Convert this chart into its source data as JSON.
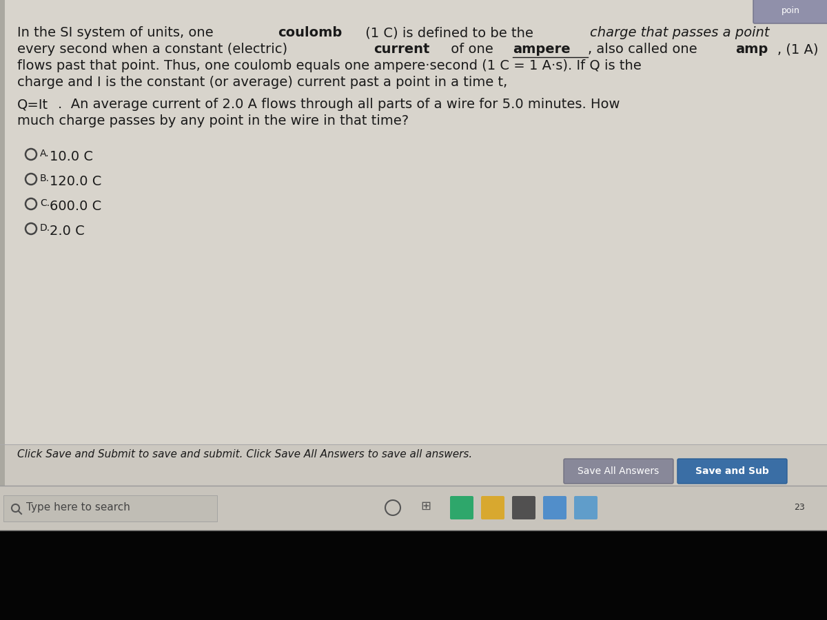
{
  "bg_outer": "#111111",
  "content_bg": "#d8d4cc",
  "taskbar_bg": "#c8c4bc",
  "taskbar_border": "#aaaaaa",
  "black_bottom": "#000000",
  "text_dark": "#1a1a1a",
  "text_medium": "#333333",
  "footer_bg": "#cccccc",
  "btn1_bg": "#888899",
  "btn1_text_color": "#ffffff",
  "btn2_bg": "#3a6ea5",
  "btn2_text_color": "#ffffff",
  "top_btn_bg": "#9090aa",
  "radio_color": "#444444",
  "line1": "In the SI system of units, one ",
  "line1_bold": "coulomb",
  "line1_mid": " (1 C) is defined to be the ",
  "line1_italic": "charge that passes a point",
  "line2_start": "every second when a constant (electric) ",
  "line2_bold": "current",
  "line2_mid1": " of one ",
  "line2_bold_und": "ampere",
  "line2_mid2": ", also called one ",
  "line2_bold2": "amp",
  "line2_end": ", (1 A)",
  "line3": "flows past that point. Thus, one coulomb equals one ampere·second (1 C = 1 A·s). If Q is the",
  "line4": "charge and I is the constant (or average) current past a point in a time t,",
  "line5a": "Q=It",
  "line5b": ".  An average current of 2.0 A flows through all parts of a wire for 5.0 minutes. How",
  "line6": "much charge passes by any point in the wire in that time?",
  "choice_A": "10.0 C",
  "choice_B": "120.0 C",
  "choice_C": "600.0 C",
  "choice_D": "2.0 C",
  "footer_text": "Click Save and Submit to save and submit. Click Save All Answers to save all answers.",
  "btn1_label": "Save All Answers",
  "btn2_label": "Save and Sub",
  "search_text": "Type here to search",
  "top_label": "poin"
}
